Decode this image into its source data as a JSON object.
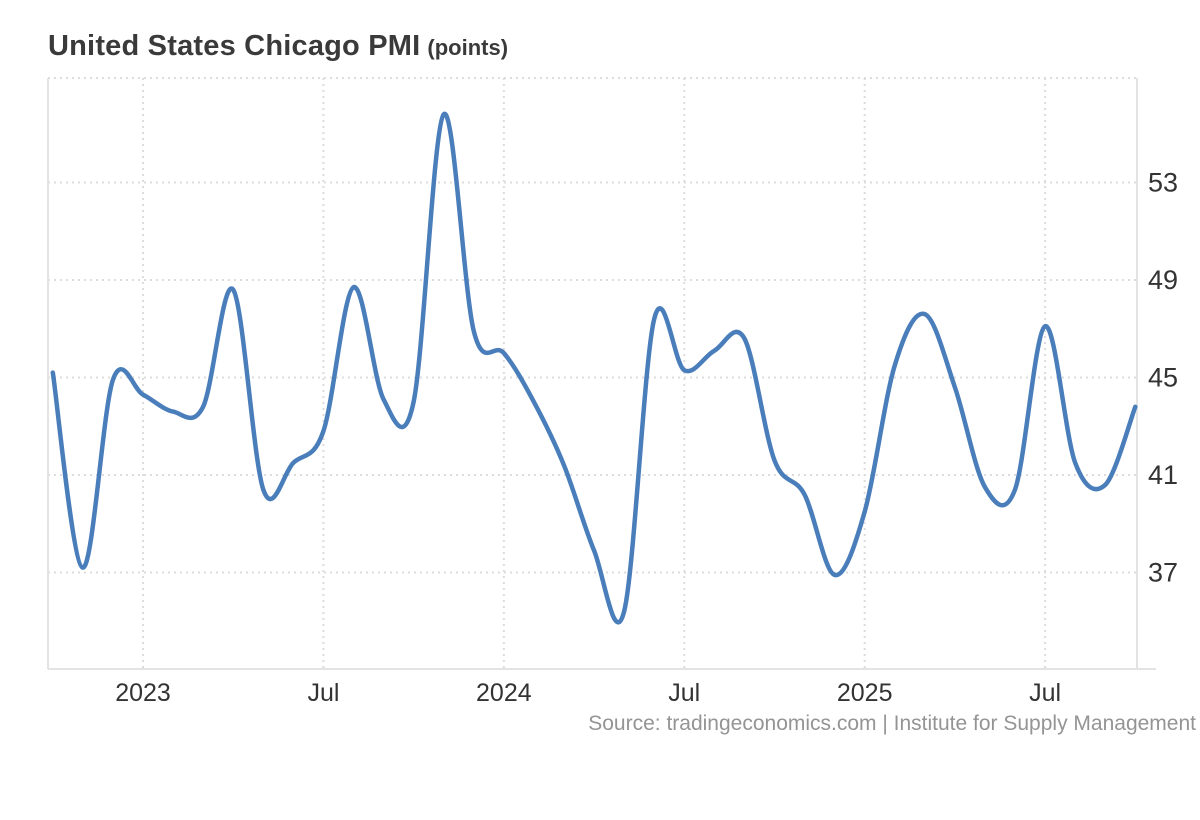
{
  "chart_data": {
    "type": "line",
    "title": "United States Chicago PMI",
    "unit_label": "(points)",
    "source": "Source: tradingeconomics.com | Institute for Supply Management",
    "x_monthly": [
      "2022-10",
      "2022-11",
      "2022-12",
      "2023-01",
      "2023-02",
      "2023-03",
      "2023-04",
      "2023-05",
      "2023-06",
      "2023-07",
      "2023-08",
      "2023-09",
      "2023-10",
      "2023-11",
      "2023-12",
      "2024-01",
      "2024-02",
      "2024-03",
      "2024-04",
      "2024-05",
      "2024-06",
      "2024-07",
      "2024-08",
      "2024-09",
      "2024-10",
      "2024-11",
      "2024-12",
      "2025-01",
      "2025-02",
      "2025-03",
      "2025-04",
      "2025-05",
      "2025-06",
      "2025-07",
      "2025-08",
      "2025-09",
      "2025-10"
    ],
    "values": [
      45.2,
      37.2,
      44.9,
      44.3,
      43.6,
      43.8,
      48.6,
      40.4,
      41.5,
      42.8,
      48.7,
      44.1,
      44.0,
      55.8,
      46.9,
      46.0,
      44.0,
      41.4,
      37.9,
      35.4,
      47.4,
      45.3,
      46.1,
      46.6,
      41.6,
      40.2,
      36.9,
      39.5,
      45.5,
      47.6,
      44.6,
      40.5,
      40.4,
      47.1,
      41.5,
      40.6,
      43.8
    ],
    "y_ticks": [
      37,
      41,
      45,
      49,
      53
    ],
    "x_tick_marks": [
      {
        "index": 3,
        "label": "2023"
      },
      {
        "index": 9,
        "label": "Jul"
      },
      {
        "index": 15,
        "label": "2024"
      },
      {
        "index": 21,
        "label": "Jul"
      },
      {
        "index": 27,
        "label": "2025"
      },
      {
        "index": 33,
        "label": "Jul"
      }
    ],
    "ylim": [
      33.1,
      57.3
    ],
    "grid": "dotted",
    "legend": "none",
    "colors": {
      "line": "#4a7ebb",
      "grid": "#dcdcdc",
      "axis_border": "#e3e3e3",
      "tick_text": "#333333",
      "title_text": "#3a3a3a",
      "source_text": "#949494",
      "background": "#ffffff"
    }
  }
}
